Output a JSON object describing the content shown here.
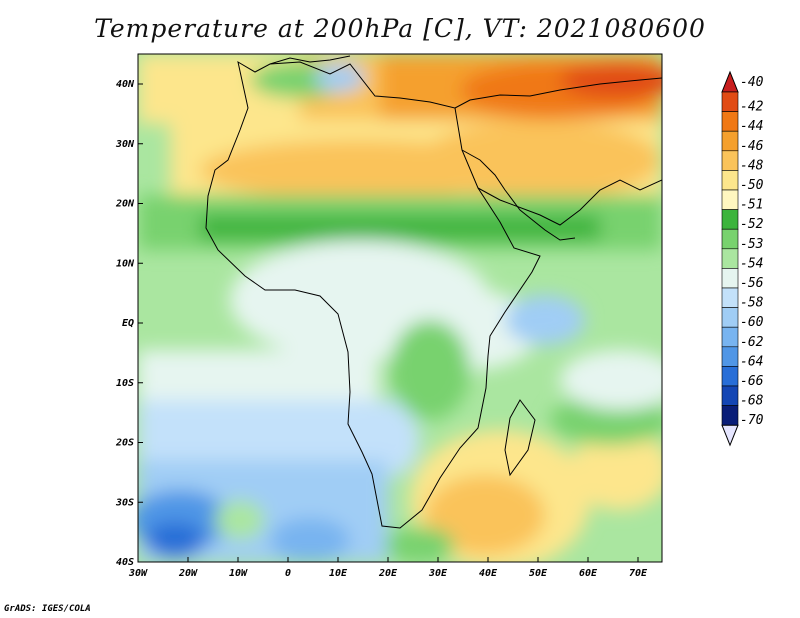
{
  "title": "Temperature at 200hPa [C], VT: 2021080600",
  "credit": "GrADS: IGES/COLA",
  "lat_labels": [
    "40N",
    "30N",
    "20N",
    "10N",
    "EQ",
    "10S",
    "20S",
    "30S",
    "40S"
  ],
  "lon_labels": [
    "30W",
    "20W",
    "10W",
    "0",
    "10E",
    "20E",
    "30E",
    "40E",
    "50E",
    "60E",
    "70E"
  ],
  "colorbar": {
    "levels": [
      "-40",
      "-42",
      "-44",
      "-46",
      "-48",
      "-50",
      "-51",
      "-52",
      "-53",
      "-54",
      "-56",
      "-58",
      "-60",
      "-62",
      "-64",
      "-66",
      "-68",
      "-70"
    ],
    "colors": [
      "#c81e1e",
      "#e14b14",
      "#f07814",
      "#f5a02d",
      "#fac35a",
      "#fde68c",
      "#fff7c0",
      "#3cb43c",
      "#78d26e",
      "#aae6a0",
      "#e6f5f0",
      "#c3e1fa",
      "#a0cdf5",
      "#78b4f0",
      "#5096e6",
      "#286ed7",
      "#1446b4",
      "#0a1e78"
    ],
    "extend_low_color": "#e6e6ff"
  }
}
